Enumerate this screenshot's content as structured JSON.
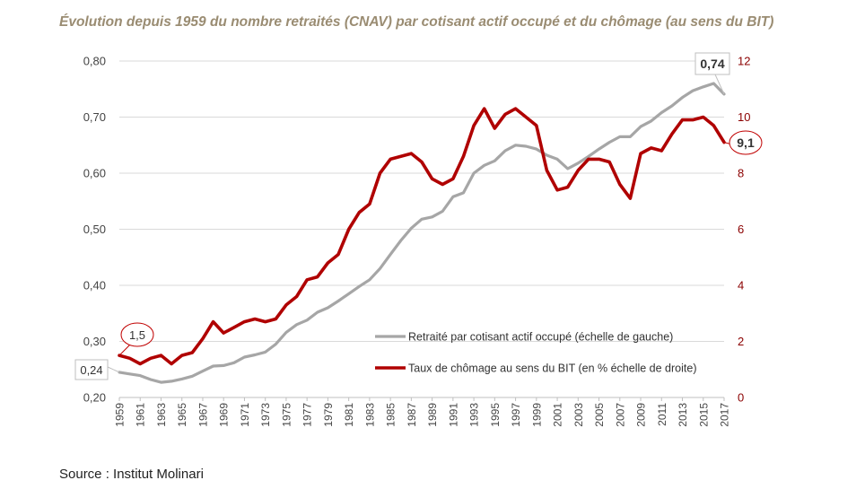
{
  "title": "Évolution depuis 1959 du nombre retraités (CNAV) par cotisant actif occupé et du chômage (au sens du BIT)",
  "source": "Source : Institut Molinari",
  "colors": {
    "series1": "#a6a6a6",
    "series2": "#b00000",
    "gridline": "#d9d9d9",
    "title": "#9a8c72",
    "right_axis": "#8b0000"
  },
  "chart_data": {
    "type": "line",
    "title": "Évolution depuis 1959 du nombre retraités (CNAV) par cotisant actif occupé et du chômage (au sens du BIT)",
    "x": [
      1959,
      1960,
      1961,
      1962,
      1963,
      1964,
      1965,
      1966,
      1967,
      1968,
      1969,
      1970,
      1971,
      1972,
      1973,
      1974,
      1975,
      1976,
      1977,
      1978,
      1979,
      1980,
      1981,
      1982,
      1983,
      1984,
      1985,
      1986,
      1987,
      1988,
      1989,
      1990,
      1991,
      1992,
      1993,
      1994,
      1995,
      1996,
      1997,
      1998,
      1999,
      2000,
      2001,
      2002,
      2003,
      2004,
      2005,
      2006,
      2007,
      2008,
      2009,
      2010,
      2011,
      2012,
      2013,
      2014,
      2015,
      2016,
      2017
    ],
    "x_tick_labels": [
      "1959",
      "1961",
      "1963",
      "1965",
      "1967",
      "1969",
      "1971",
      "1973",
      "1975",
      "1977",
      "1979",
      "1981",
      "1983",
      "1985",
      "1987",
      "1989",
      "1991",
      "1993",
      "1995",
      "1997",
      "1999",
      "2001",
      "2003",
      "2005",
      "2007",
      "2009",
      "2011",
      "2013",
      "2015",
      "2017"
    ],
    "y_left": {
      "ylim": [
        0.2,
        0.8
      ],
      "ticks": [
        "0,20",
        "0,30",
        "0,40",
        "0,50",
        "0,60",
        "0,70",
        "0,80"
      ],
      "tick_values": [
        0.2,
        0.3,
        0.4,
        0.5,
        0.6,
        0.7,
        0.8
      ]
    },
    "y_right": {
      "ylim": [
        0,
        12
      ],
      "ticks": [
        "0",
        "2",
        "4",
        "6",
        "8",
        "10",
        "12"
      ],
      "tick_values": [
        0,
        2,
        4,
        6,
        8,
        10,
        12
      ]
    },
    "grid": true,
    "legend_position": "lower-right",
    "series": [
      {
        "name": "Retraité par cotisant actif occupé (échelle de gauche)",
        "axis": "left",
        "values": [
          0.245,
          0.242,
          0.239,
          0.232,
          0.227,
          0.229,
          0.233,
          0.238,
          0.247,
          0.256,
          0.257,
          0.262,
          0.272,
          0.276,
          0.281,
          0.295,
          0.316,
          0.33,
          0.338,
          0.352,
          0.36,
          0.372,
          0.385,
          0.398,
          0.41,
          0.43,
          0.455,
          0.48,
          0.502,
          0.518,
          0.522,
          0.532,
          0.558,
          0.565,
          0.6,
          0.614,
          0.622,
          0.64,
          0.65,
          0.648,
          0.643,
          0.632,
          0.625,
          0.608,
          0.618,
          0.63,
          0.643,
          0.655,
          0.665,
          0.665,
          0.683,
          0.693,
          0.708,
          0.72,
          0.735,
          0.747,
          0.754,
          0.76,
          0.741
        ]
      },
      {
        "name": "Taux de chômage au sens du BIT (en % échelle de droite)",
        "axis": "right",
        "values": [
          1.5,
          1.4,
          1.2,
          1.4,
          1.5,
          1.2,
          1.5,
          1.6,
          2.1,
          2.7,
          2.3,
          2.5,
          2.7,
          2.8,
          2.7,
          2.8,
          3.3,
          3.6,
          4.2,
          4.3,
          4.8,
          5.1,
          6.0,
          6.6,
          6.9,
          8.0,
          8.5,
          8.6,
          8.7,
          8.4,
          7.8,
          7.6,
          7.8,
          8.6,
          9.7,
          10.3,
          9.6,
          10.1,
          10.3,
          10.0,
          9.7,
          8.1,
          7.4,
          7.5,
          8.1,
          8.5,
          8.5,
          8.4,
          7.6,
          7.1,
          8.7,
          8.9,
          8.8,
          9.4,
          9.9,
          9.9,
          10.0,
          9.7,
          9.1
        ]
      }
    ],
    "annotations": [
      {
        "series": 0,
        "year": 1959,
        "label": "0,24",
        "style": "box"
      },
      {
        "series": 1,
        "year": 1959,
        "label": "1,5",
        "style": "oval"
      },
      {
        "series": 0,
        "year": 2017,
        "label": "0,74",
        "style": "box-bold"
      },
      {
        "series": 1,
        "year": 2017,
        "label": "9,1",
        "style": "oval-bold"
      }
    ]
  }
}
